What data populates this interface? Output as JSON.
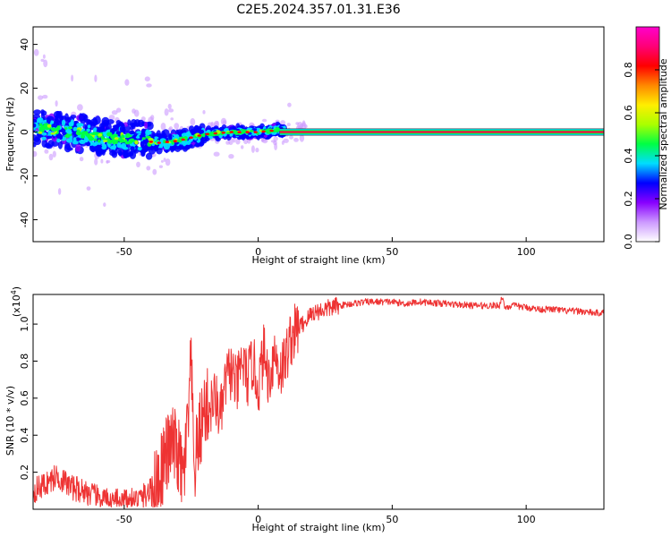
{
  "figure_title": "C2E5.2024.357.01.31.E36",
  "chart_data": [
    {
      "type": "heatmap",
      "title": "C2E5.2024.357.01.31.E36",
      "xlabel": "Height of straight line (km)",
      "ylabel": "Frequency (Hz)",
      "xlim": [
        -84,
        129
      ],
      "ylim": [
        -50,
        48
      ],
      "x_ticks": [
        -50,
        0,
        50,
        100
      ],
      "x_tick_labels": [
        "-50",
        "0",
        "50",
        "100"
      ],
      "y_ticks": [
        -40,
        -20,
        0,
        20,
        40
      ],
      "y_tick_labels": [
        "-40",
        "-20",
        "0",
        "20",
        "40"
      ],
      "colorbar": {
        "label": "Normalized spectral amplitude",
        "range": [
          0,
          1
        ],
        "ticks": [
          0.0,
          0.2,
          0.4,
          0.6,
          0.8
        ],
        "tick_labels": [
          "0.0",
          "0.2",
          "0.4",
          "0.6",
          "0.8"
        ],
        "colors": [
          "#ffffff",
          "#cc99ff",
          "#8800ff",
          "#0000ff",
          "#00ddff",
          "#00ff44",
          "#aaff00",
          "#ffee00",
          "#ff8800",
          "#ff0000",
          "#ff0077",
          "#ff00cc"
        ]
      },
      "ridge": [
        {
          "x": -84,
          "f": 2
        },
        {
          "x": -70,
          "f": 0
        },
        {
          "x": -55,
          "f": -3
        },
        {
          "x": -45,
          "f": -3
        },
        {
          "x": -38,
          "f": -5
        },
        {
          "x": -30,
          "f": -4
        },
        {
          "x": -20,
          "f": -1
        },
        {
          "x": -10,
          "f": 0
        },
        {
          "x": 0,
          "f": 0
        },
        {
          "x": 8,
          "f": 1
        },
        {
          "x": 15,
          "f": 0
        },
        {
          "x": 129,
          "f": 0
        }
      ],
      "band_start_x": 8,
      "band_frequency": 0
    },
    {
      "type": "line",
      "xlabel": "Height of straight line (km)",
      "ylabel": "SNR (10 * v/v)",
      "y_scale_label": "(x10",
      "y_scale_exponent": "4",
      "y_scale_suffix": ")",
      "xlim": [
        -84,
        129
      ],
      "ylim": [
        0,
        1.16
      ],
      "x_ticks": [
        -50,
        0,
        50,
        100
      ],
      "x_tick_labels": [
        "-50",
        "0",
        "50",
        "100"
      ],
      "y_ticks": [
        0.2,
        0.4,
        0.6,
        0.8,
        1.0
      ],
      "y_tick_labels": [
        "0.2",
        "0.4",
        "0.6",
        "0.8",
        "1.0"
      ],
      "series": [
        {
          "name": "SNR",
          "color": "#ee3333",
          "x": [
            -84,
            -80,
            -75,
            -70,
            -65,
            -60,
            -55,
            -50,
            -45,
            -42,
            -38,
            -35,
            -32,
            -30,
            -28,
            -26,
            -25,
            -24,
            -22,
            -20,
            -18,
            -16,
            -14,
            -12,
            -10,
            -8,
            -6,
            -4,
            -2,
            0,
            2,
            4,
            6,
            8,
            10,
            12,
            15,
            18,
            20,
            25,
            30,
            35,
            40,
            45,
            50,
            55,
            60,
            70,
            80,
            90,
            91,
            92,
            95,
            100,
            105,
            110,
            115,
            120,
            125,
            129
          ],
          "y": [
            0.1,
            0.13,
            0.18,
            0.12,
            0.1,
            0.06,
            0.04,
            0.04,
            0.05,
            0.08,
            0.12,
            0.28,
            0.35,
            0.3,
            0.15,
            0.5,
            0.8,
            0.2,
            0.4,
            0.55,
            0.55,
            0.6,
            0.5,
            0.7,
            0.75,
            0.65,
            0.8,
            0.7,
            0.8,
            0.65,
            0.85,
            0.7,
            0.85,
            0.75,
            0.8,
            0.92,
            0.98,
            1.02,
            1.06,
            1.08,
            1.1,
            1.11,
            1.12,
            1.12,
            1.12,
            1.11,
            1.12,
            1.11,
            1.1,
            1.1,
            1.15,
            1.09,
            1.1,
            1.09,
            1.08,
            1.08,
            1.07,
            1.07,
            1.06,
            1.06
          ]
        }
      ]
    }
  ]
}
